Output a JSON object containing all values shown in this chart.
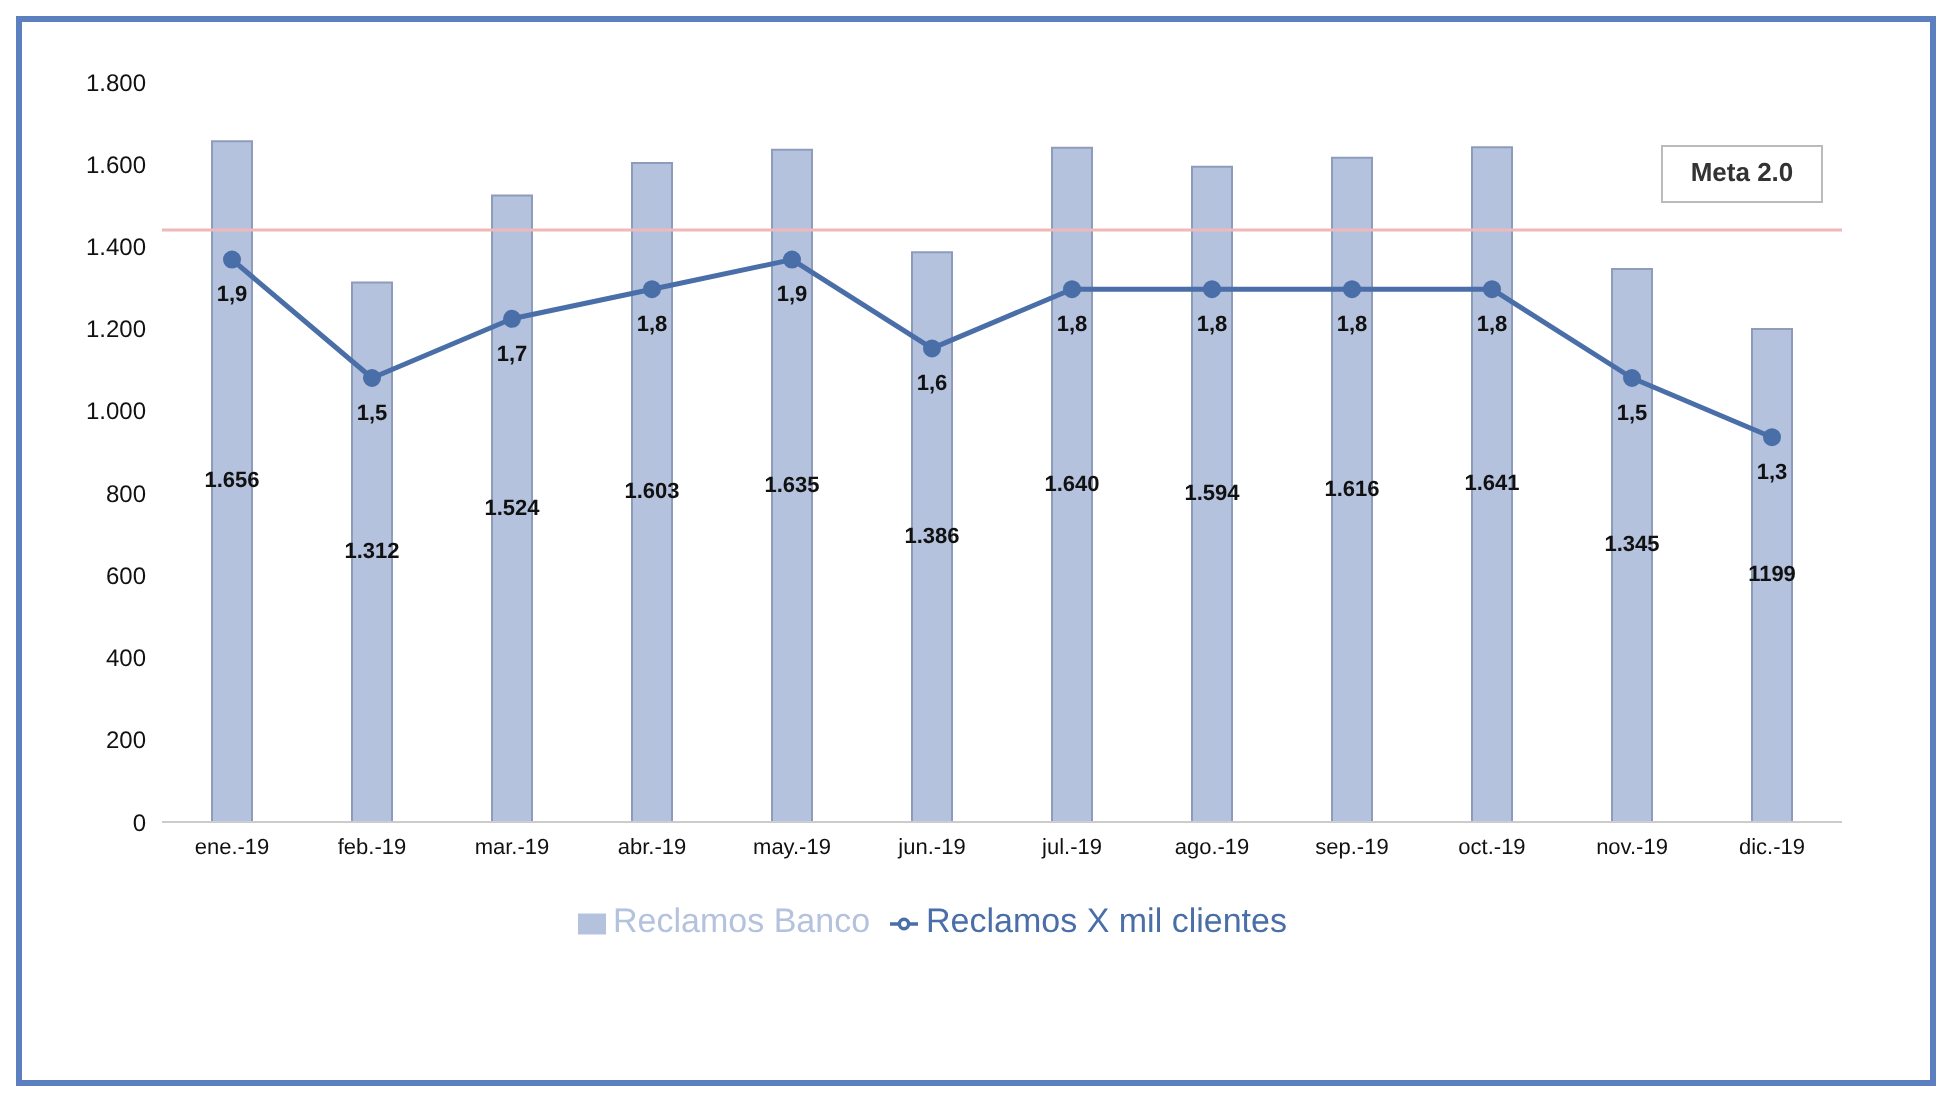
{
  "chart_data": {
    "type": "bar",
    "categories": [
      "ene.-19",
      "feb.-19",
      "mar.-19",
      "abr.-19",
      "may.-19",
      "jun.-19",
      "jul.-19",
      "ago.-19",
      "sep.-19",
      "oct.-19",
      "nov.-19",
      "dic.-19"
    ],
    "series": [
      {
        "name": "Reclamos Banco",
        "type": "bar",
        "color": "#b4c2de",
        "values": [
          1656,
          1312,
          1524,
          1603,
          1635,
          1386,
          1640,
          1594,
          1616,
          1641,
          1345,
          1199
        ],
        "value_labels": [
          "1.656",
          "1.312",
          "1.524",
          "1.603",
          "1.635",
          "1.386",
          "1.640",
          "1.594",
          "1.616",
          "1.641",
          "1.345",
          "1199"
        ]
      },
      {
        "name": "Reclamos X mil clientes",
        "type": "line",
        "axis": "y2",
        "color": "#4a6ea8",
        "values": [
          1.9,
          1.5,
          1.7,
          1.8,
          1.9,
          1.6,
          1.8,
          1.8,
          1.8,
          1.8,
          1.5,
          1.3
        ],
        "value_labels": [
          "1,9",
          "1,5",
          "1,7",
          "1,8",
          "1,9",
          "1,6",
          "1,8",
          "1,8",
          "1,8",
          "1,8",
          "1,5",
          "1,3"
        ]
      }
    ],
    "ylim": [
      0,
      1800
    ],
    "yticks": [
      0,
      200,
      400,
      600,
      800,
      {
        "value": 1000,
        "label": "1.000"
      },
      {
        "value": 1200,
        "label": "1.200"
      },
      {
        "value": 1400,
        "label": "1.400"
      },
      {
        "value": 1600,
        "label": "1.600"
      },
      {
        "value": 1800,
        "label": "1.800"
      }
    ],
    "ref_lines": [
      {
        "axis": "y2",
        "value": 2.0,
        "label": "Meta 2.0",
        "color": "#f0b8b8"
      }
    ],
    "marker": "circle",
    "legend": "bottom"
  }
}
